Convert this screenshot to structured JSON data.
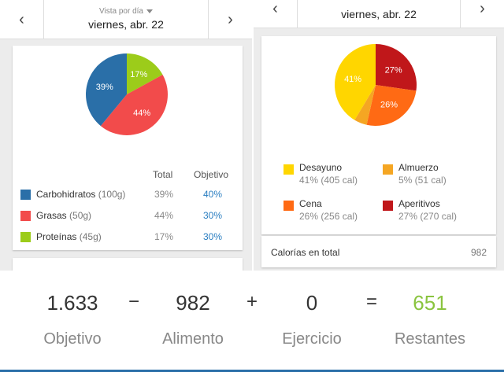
{
  "left": {
    "view_label": "Vista por día",
    "date": "viernes, abr. 22",
    "nav_prev": "‹",
    "nav_next": "›",
    "pie": [
      {
        "label": "39%",
        "value": 39,
        "color": "#2a6fa8"
      },
      {
        "label": "17%",
        "value": 17,
        "color": "#9ccc1a"
      },
      {
        "label": "44%",
        "value": 44,
        "color": "#f24b4b"
      }
    ],
    "headers": {
      "total": "Total",
      "goal": "Objetivo"
    },
    "macros": [
      {
        "name": "Carbohidratos",
        "grams": "(100g)",
        "total": "39%",
        "goal": "40%",
        "color": "#2a6fa8"
      },
      {
        "name": "Grasas",
        "grams": "(50g)",
        "total": "44%",
        "goal": "30%",
        "color": "#f24b4b"
      },
      {
        "name": "Proteínas",
        "grams": "(45g)",
        "total": "17%",
        "goal": "30%",
        "color": "#9ccc1a"
      }
    ]
  },
  "right": {
    "date": "viernes, abr. 22",
    "nav_prev": "‹",
    "nav_next": "›",
    "pie": [
      {
        "label": "27%",
        "value": 27,
        "color": "#c0171a"
      },
      {
        "label": "26%",
        "value": 26,
        "color": "#ff6a14"
      },
      {
        "label": "",
        "value": 5,
        "color": "#f5a623"
      },
      {
        "label": "41%",
        "value": 41,
        "color": "#ffd600"
      }
    ],
    "meals": [
      {
        "name": "Desayuno",
        "sub": "41% (405 cal)",
        "color": "#ffd600"
      },
      {
        "name": "Almuerzo",
        "sub": "5% (51 cal)",
        "color": "#f5a623"
      },
      {
        "name": "Cena",
        "sub": "26% (256 cal)",
        "color": "#ff6a14"
      },
      {
        "name": "Aperitivos",
        "sub": "27% (270 cal)",
        "color": "#c0171a"
      }
    ],
    "calories_label": "Calorías en total",
    "calories_value": "982"
  },
  "summary": {
    "goal_value": "1.633",
    "goal_label": "Objetivo",
    "minus": "−",
    "food_value": "982",
    "food_label": "Alimento",
    "plus": "+",
    "exercise_value": "0",
    "exercise_label": "Ejercicio",
    "equals": "=",
    "remaining_value": "651",
    "remaining_label": "Restantes"
  }
}
